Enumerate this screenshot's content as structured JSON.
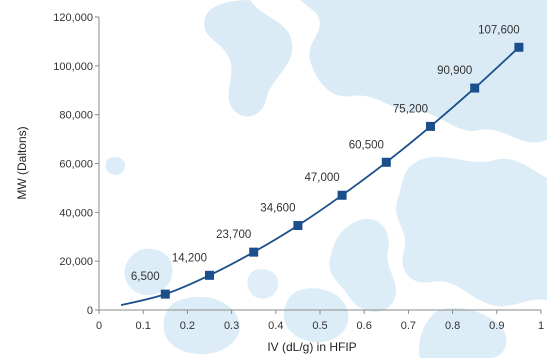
{
  "chart_data": {
    "type": "line",
    "xlabel": "IV  (dL/g) in HFIP",
    "ylabel": "MW (Daltons)",
    "xlim": [
      0,
      1
    ],
    "ylim": [
      0,
      120000
    ],
    "x_ticks": [
      0,
      0.1,
      0.2,
      0.3,
      0.4,
      0.5,
      0.6,
      0.7,
      0.8,
      0.9,
      1
    ],
    "x_tick_labels": [
      "0",
      "0.1",
      "0.2",
      "0.3",
      "0.4",
      "0.5",
      "0.6",
      "0.7",
      "0.8",
      "0.9",
      "1"
    ],
    "y_ticks": [
      0,
      20000,
      40000,
      60000,
      80000,
      100000,
      120000
    ],
    "y_tick_labels": [
      "0",
      "20,000",
      "40,000",
      "60,000",
      "80,000",
      "100,000",
      "120,000"
    ],
    "grid": false,
    "series": [
      {
        "points": [
          {
            "x": 0.15,
            "y": 6500,
            "label": "6,500"
          },
          {
            "x": 0.25,
            "y": 14200,
            "label": "14,200"
          },
          {
            "x": 0.35,
            "y": 23700,
            "label": "23,700"
          },
          {
            "x": 0.45,
            "y": 34600,
            "label": "34,600"
          },
          {
            "x": 0.55,
            "y": 47000,
            "label": "47,000"
          },
          {
            "x": 0.65,
            "y": 60500,
            "label": "60,500"
          },
          {
            "x": 0.75,
            "y": 75200,
            "label": "75,200"
          },
          {
            "x": 0.85,
            "y": 90900,
            "label": "90,900"
          },
          {
            "x": 0.95,
            "y": 107600,
            "label": "107,600"
          }
        ],
        "curve_start": {
          "x": 0.05,
          "y": 2000
        },
        "color": "#1a4f8c"
      }
    ]
  },
  "colors": {
    "background": "#ffffff",
    "watermark": "#d4e8f5",
    "axis": "#8a8a8a",
    "line": "#1a4f8c",
    "text": "#333333"
  }
}
